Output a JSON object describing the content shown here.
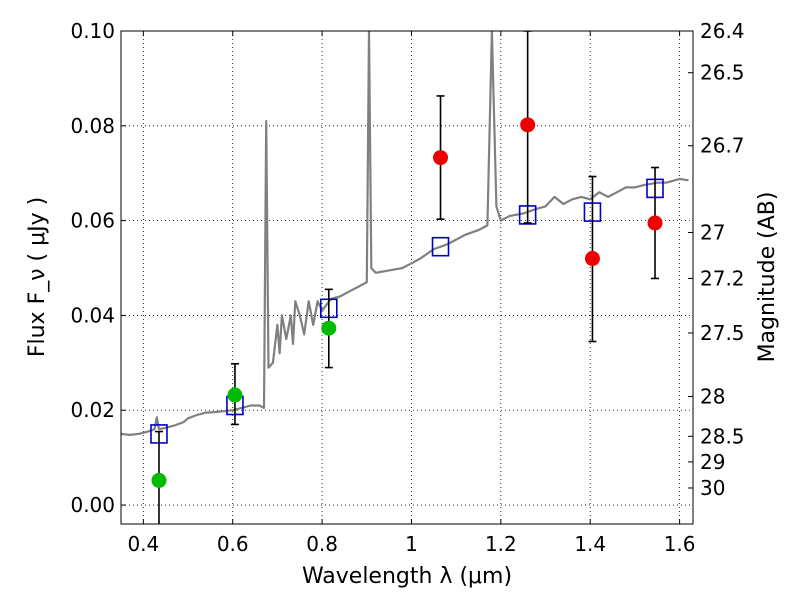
{
  "chart_data": {
    "type": "scatter",
    "xlabel": "Wavelength  λ (μm)",
    "ylabel": "Flux  F_ν  ( μJy )",
    "ylabel_right": "Magnitude (AB)",
    "xlim": [
      0.35,
      1.63
    ],
    "ylim": [
      -0.004,
      0.1
    ],
    "x_ticks": [
      0.4,
      0.6,
      0.8,
      1.0,
      1.2,
      1.4,
      1.6
    ],
    "x_tick_labels": [
      "0.4",
      "0.6",
      "0.8",
      "1",
      "1.2",
      "1.4",
      "1.6"
    ],
    "y_ticks": [
      0.0,
      0.02,
      0.04,
      0.06,
      0.08,
      0.1
    ],
    "y_tick_labels": [
      "0.00",
      "0.02",
      "0.04",
      "0.06",
      "0.08",
      "0.10"
    ],
    "right_axis_ticks": [
      {
        "flux": 0.1,
        "label": "26.4"
      },
      {
        "flux": 0.0912,
        "label": "26.5"
      },
      {
        "flux": 0.0758,
        "label": "26.7"
      },
      {
        "flux": 0.0575,
        "label": "27"
      },
      {
        "flux": 0.0478,
        "label": "27.2"
      },
      {
        "flux": 0.0363,
        "label": "27.5"
      },
      {
        "flux": 0.0229,
        "label": "28"
      },
      {
        "flux": 0.0145,
        "label": "28.5"
      },
      {
        "flux": 0.0091,
        "label": "29"
      },
      {
        "flux": 0.0036,
        "label": "30"
      }
    ],
    "grid": true,
    "series": [
      {
        "kind": "line",
        "color": "#808080",
        "points": [
          [
            0.35,
            0.015
          ],
          [
            0.37,
            0.0148
          ],
          [
            0.39,
            0.015
          ],
          [
            0.41,
            0.0155
          ],
          [
            0.425,
            0.016
          ],
          [
            0.43,
            0.0185
          ],
          [
            0.435,
            0.016
          ],
          [
            0.45,
            0.0163
          ],
          [
            0.47,
            0.0168
          ],
          [
            0.49,
            0.0175
          ],
          [
            0.5,
            0.0183
          ],
          [
            0.52,
            0.019
          ],
          [
            0.54,
            0.0195
          ],
          [
            0.56,
            0.0196
          ],
          [
            0.58,
            0.0198
          ],
          [
            0.6,
            0.02
          ],
          [
            0.62,
            0.0205
          ],
          [
            0.64,
            0.021
          ],
          [
            0.66,
            0.021
          ],
          [
            0.67,
            0.0205
          ],
          [
            0.675,
            0.081
          ],
          [
            0.68,
            0.029
          ],
          [
            0.69,
            0.03
          ],
          [
            0.7,
            0.038
          ],
          [
            0.705,
            0.032
          ],
          [
            0.71,
            0.04
          ],
          [
            0.72,
            0.035
          ],
          [
            0.73,
            0.04
          ],
          [
            0.735,
            0.034
          ],
          [
            0.74,
            0.043
          ],
          [
            0.75,
            0.04
          ],
          [
            0.76,
            0.036
          ],
          [
            0.77,
            0.043
          ],
          [
            0.78,
            0.038
          ],
          [
            0.79,
            0.043
          ],
          [
            0.8,
            0.041
          ],
          [
            0.82,
            0.0435
          ],
          [
            0.84,
            0.044
          ],
          [
            0.86,
            0.045
          ],
          [
            0.88,
            0.046
          ],
          [
            0.9,
            0.047
          ],
          [
            0.905,
            0.1
          ],
          [
            0.91,
            0.05
          ],
          [
            0.92,
            0.049
          ],
          [
            0.95,
            0.0495
          ],
          [
            0.98,
            0.05
          ],
          [
            1.0,
            0.051
          ],
          [
            1.02,
            0.052
          ],
          [
            1.05,
            0.054
          ],
          [
            1.08,
            0.055
          ],
          [
            1.1,
            0.056
          ],
          [
            1.12,
            0.057
          ],
          [
            1.15,
            0.058
          ],
          [
            1.17,
            0.059
          ],
          [
            1.18,
            0.1
          ],
          [
            1.19,
            0.063
          ],
          [
            1.2,
            0.06
          ],
          [
            1.22,
            0.061
          ],
          [
            1.25,
            0.0615
          ],
          [
            1.28,
            0.0625
          ],
          [
            1.3,
            0.063
          ],
          [
            1.32,
            0.065
          ],
          [
            1.34,
            0.0635
          ],
          [
            1.36,
            0.0645
          ],
          [
            1.38,
            0.065
          ],
          [
            1.4,
            0.0645
          ],
          [
            1.42,
            0.066
          ],
          [
            1.44,
            0.065
          ],
          [
            1.46,
            0.066
          ],
          [
            1.48,
            0.067
          ],
          [
            1.5,
            0.067
          ],
          [
            1.52,
            0.0675
          ],
          [
            1.55,
            0.068
          ],
          [
            1.57,
            0.068
          ],
          [
            1.6,
            0.0688
          ],
          [
            1.62,
            0.0685
          ]
        ]
      },
      {
        "kind": "squares",
        "color": "#0000cc",
        "points": [
          [
            0.435,
            0.015
          ],
          [
            0.605,
            0.021
          ],
          [
            0.815,
            0.0415
          ],
          [
            1.065,
            0.0545
          ],
          [
            1.26,
            0.0612
          ],
          [
            1.405,
            0.0618
          ],
          [
            1.545,
            0.0668
          ]
        ]
      },
      {
        "kind": "circles",
        "color": "#00bb00",
        "points": [
          {
            "x": 0.435,
            "y": 0.0052,
            "err_low": -0.0045,
            "err_high": 0.0155
          },
          {
            "x": 0.605,
            "y": 0.0232,
            "err_low": 0.017,
            "err_high": 0.0298
          },
          {
            "x": 0.815,
            "y": 0.0373,
            "err_low": 0.029,
            "err_high": 0.0455
          }
        ]
      },
      {
        "kind": "circles",
        "color": "#ee0000",
        "points": [
          {
            "x": 1.065,
            "y": 0.0733,
            "err_low": 0.0603,
            "err_high": 0.0863
          },
          {
            "x": 1.26,
            "y": 0.0802,
            "err_low": 0.0595,
            "err_high": 0.1
          },
          {
            "x": 1.405,
            "y": 0.052,
            "err_low": 0.0345,
            "err_high": 0.0693
          },
          {
            "x": 1.545,
            "y": 0.0595,
            "err_low": 0.0478,
            "err_high": 0.0712
          }
        ]
      }
    ]
  }
}
